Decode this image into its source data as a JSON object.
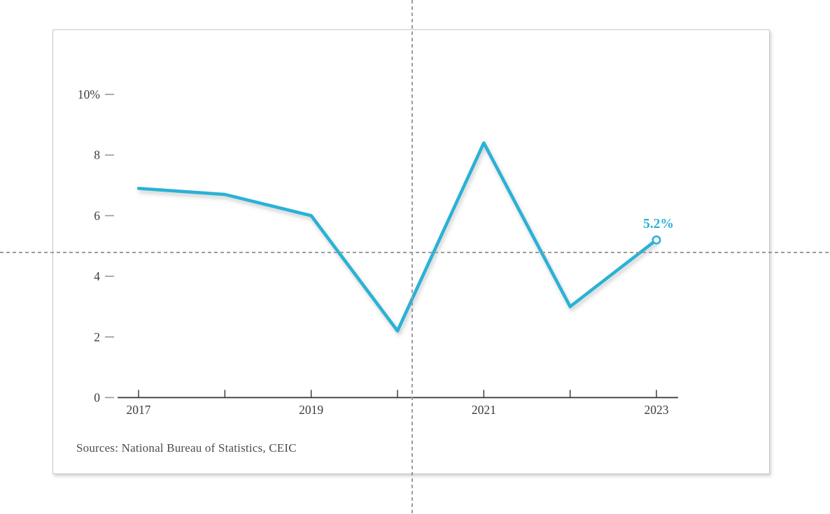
{
  "source_note": "Sources: National Bureau of Statistics, CEIC",
  "colors": {
    "line": "#29b2d6",
    "axis": "#333333",
    "tick_dash": "#979797",
    "label_text": "#3d3d3d",
    "card_border": "#c8c8c8",
    "crosshair": "#9c9c9c"
  },
  "chart_data": {
    "type": "line",
    "title": "",
    "x": [
      2017,
      2018,
      2019,
      2020,
      2021,
      2022,
      2023
    ],
    "values": [
      6.9,
      6.7,
      6.0,
      2.2,
      8.4,
      3.0,
      5.2
    ],
    "x_tick_labels": [
      "2017",
      "",
      "2019",
      "",
      "2021",
      "",
      "2023"
    ],
    "y_ticks": [
      0,
      2,
      4,
      6,
      8,
      10
    ],
    "y_tick_labels": [
      "0",
      "2",
      "4",
      "6",
      "8",
      "10%"
    ],
    "ylim": [
      0,
      10
    ],
    "end_label": "5.2%",
    "line_color": "#29b2d6",
    "grid": false,
    "legend": "none",
    "marker_last_point_only": true
  }
}
